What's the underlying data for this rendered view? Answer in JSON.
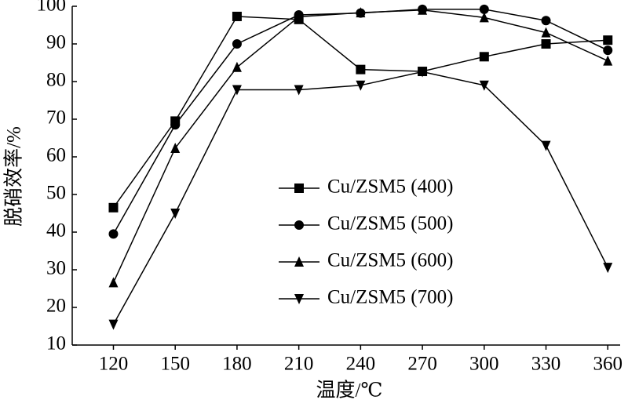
{
  "chart_data": {
    "type": "line",
    "x_label": "温度/℃",
    "y_label": "脱硝效率/%",
    "x": [
      120,
      150,
      180,
      210,
      240,
      270,
      300,
      330,
      360
    ],
    "series": [
      {
        "name": "Cu/ZSM5 (400)",
        "color": "#000000",
        "marker": "square",
        "values": [
          46.5,
          69.5,
          97.3,
          96.5,
          83.2,
          82.7,
          86.6,
          90.0,
          91.0
        ]
      },
      {
        "name": "Cu/ZSM5 (500)",
        "color": "#000000",
        "marker": "circle",
        "values": [
          39.5,
          68.5,
          90.0,
          97.7,
          98.2,
          99.2,
          99.2,
          96.2,
          88.3
        ]
      },
      {
        "name": "Cu/ZSM5 (600)",
        "color": "#000000",
        "marker": "triangle-up",
        "values": [
          26.6,
          62.3,
          83.8,
          97.2,
          98.3,
          99.0,
          97.0,
          93.0,
          85.5
        ]
      },
      {
        "name": "Cu/ZSM5 (700)",
        "color": "#000000",
        "marker": "triangle-down",
        "values": [
          15.5,
          45.0,
          77.8,
          77.8,
          79.0,
          82.6,
          79.0,
          63.0,
          30.6
        ]
      }
    ],
    "xlim": [
      100,
      366
    ],
    "ylim": [
      10,
      100
    ],
    "xticks": [
      120,
      150,
      180,
      210,
      240,
      270,
      300,
      330,
      360
    ],
    "yticks": [
      10,
      20,
      30,
      40,
      50,
      60,
      70,
      80,
      90,
      100
    ],
    "legend": "center"
  }
}
